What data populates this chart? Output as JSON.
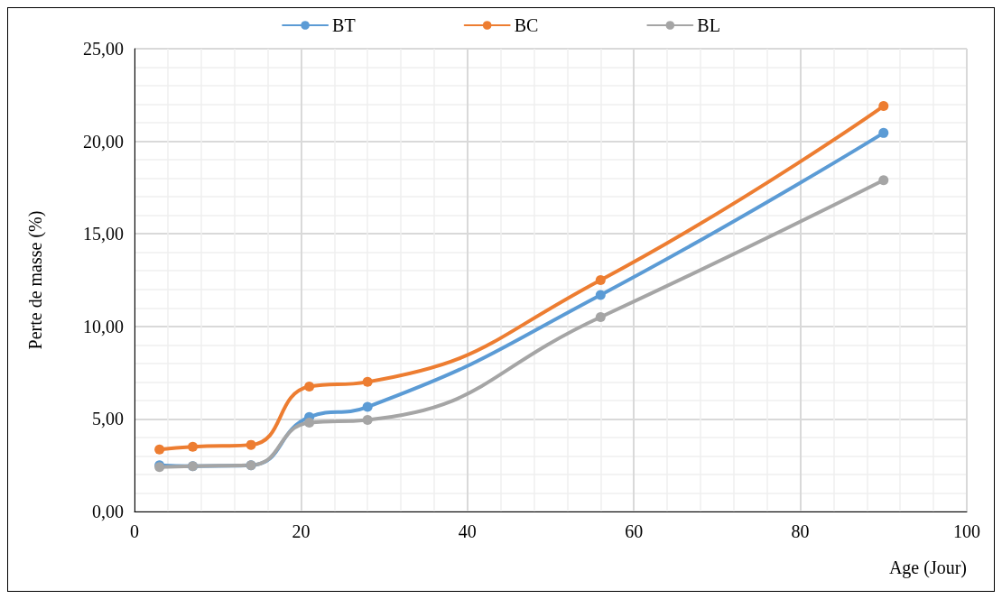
{
  "chart_data": {
    "type": "line",
    "xlabel": "Age (Jour)",
    "ylabel": "Perte de masse (%)",
    "x": [
      3,
      7,
      14,
      21,
      28,
      56,
      90
    ],
    "series": [
      {
        "name": "BT",
        "color": "#5b9bd5",
        "values": [
          2.5,
          2.45,
          2.5,
          5.1,
          5.65,
          11.7,
          20.45
        ]
      },
      {
        "name": "BC",
        "color": "#ed7d31",
        "values": [
          3.35,
          3.5,
          3.6,
          6.75,
          7.0,
          12.5,
          21.9
        ]
      },
      {
        "name": "BL",
        "color": "#a5a5a5",
        "values": [
          2.4,
          2.45,
          2.5,
          4.8,
          4.95,
          10.5,
          17.9
        ]
      }
    ],
    "xlim": [
      0,
      100
    ],
    "xticks": [
      0,
      20,
      40,
      60,
      80,
      100
    ],
    "ylim": [
      0,
      25
    ],
    "yticks": [
      {
        "value": 0,
        "label": "0,00"
      },
      {
        "value": 5,
        "label": "5,00"
      },
      {
        "value": 10,
        "label": "10,00"
      },
      {
        "value": 15,
        "label": "15,00"
      },
      {
        "value": 20,
        "label": "20,00"
      },
      {
        "value": 25,
        "label": "25,00"
      }
    ],
    "grid": true,
    "legend": "top",
    "marker": "circle",
    "line_style": "solid"
  }
}
